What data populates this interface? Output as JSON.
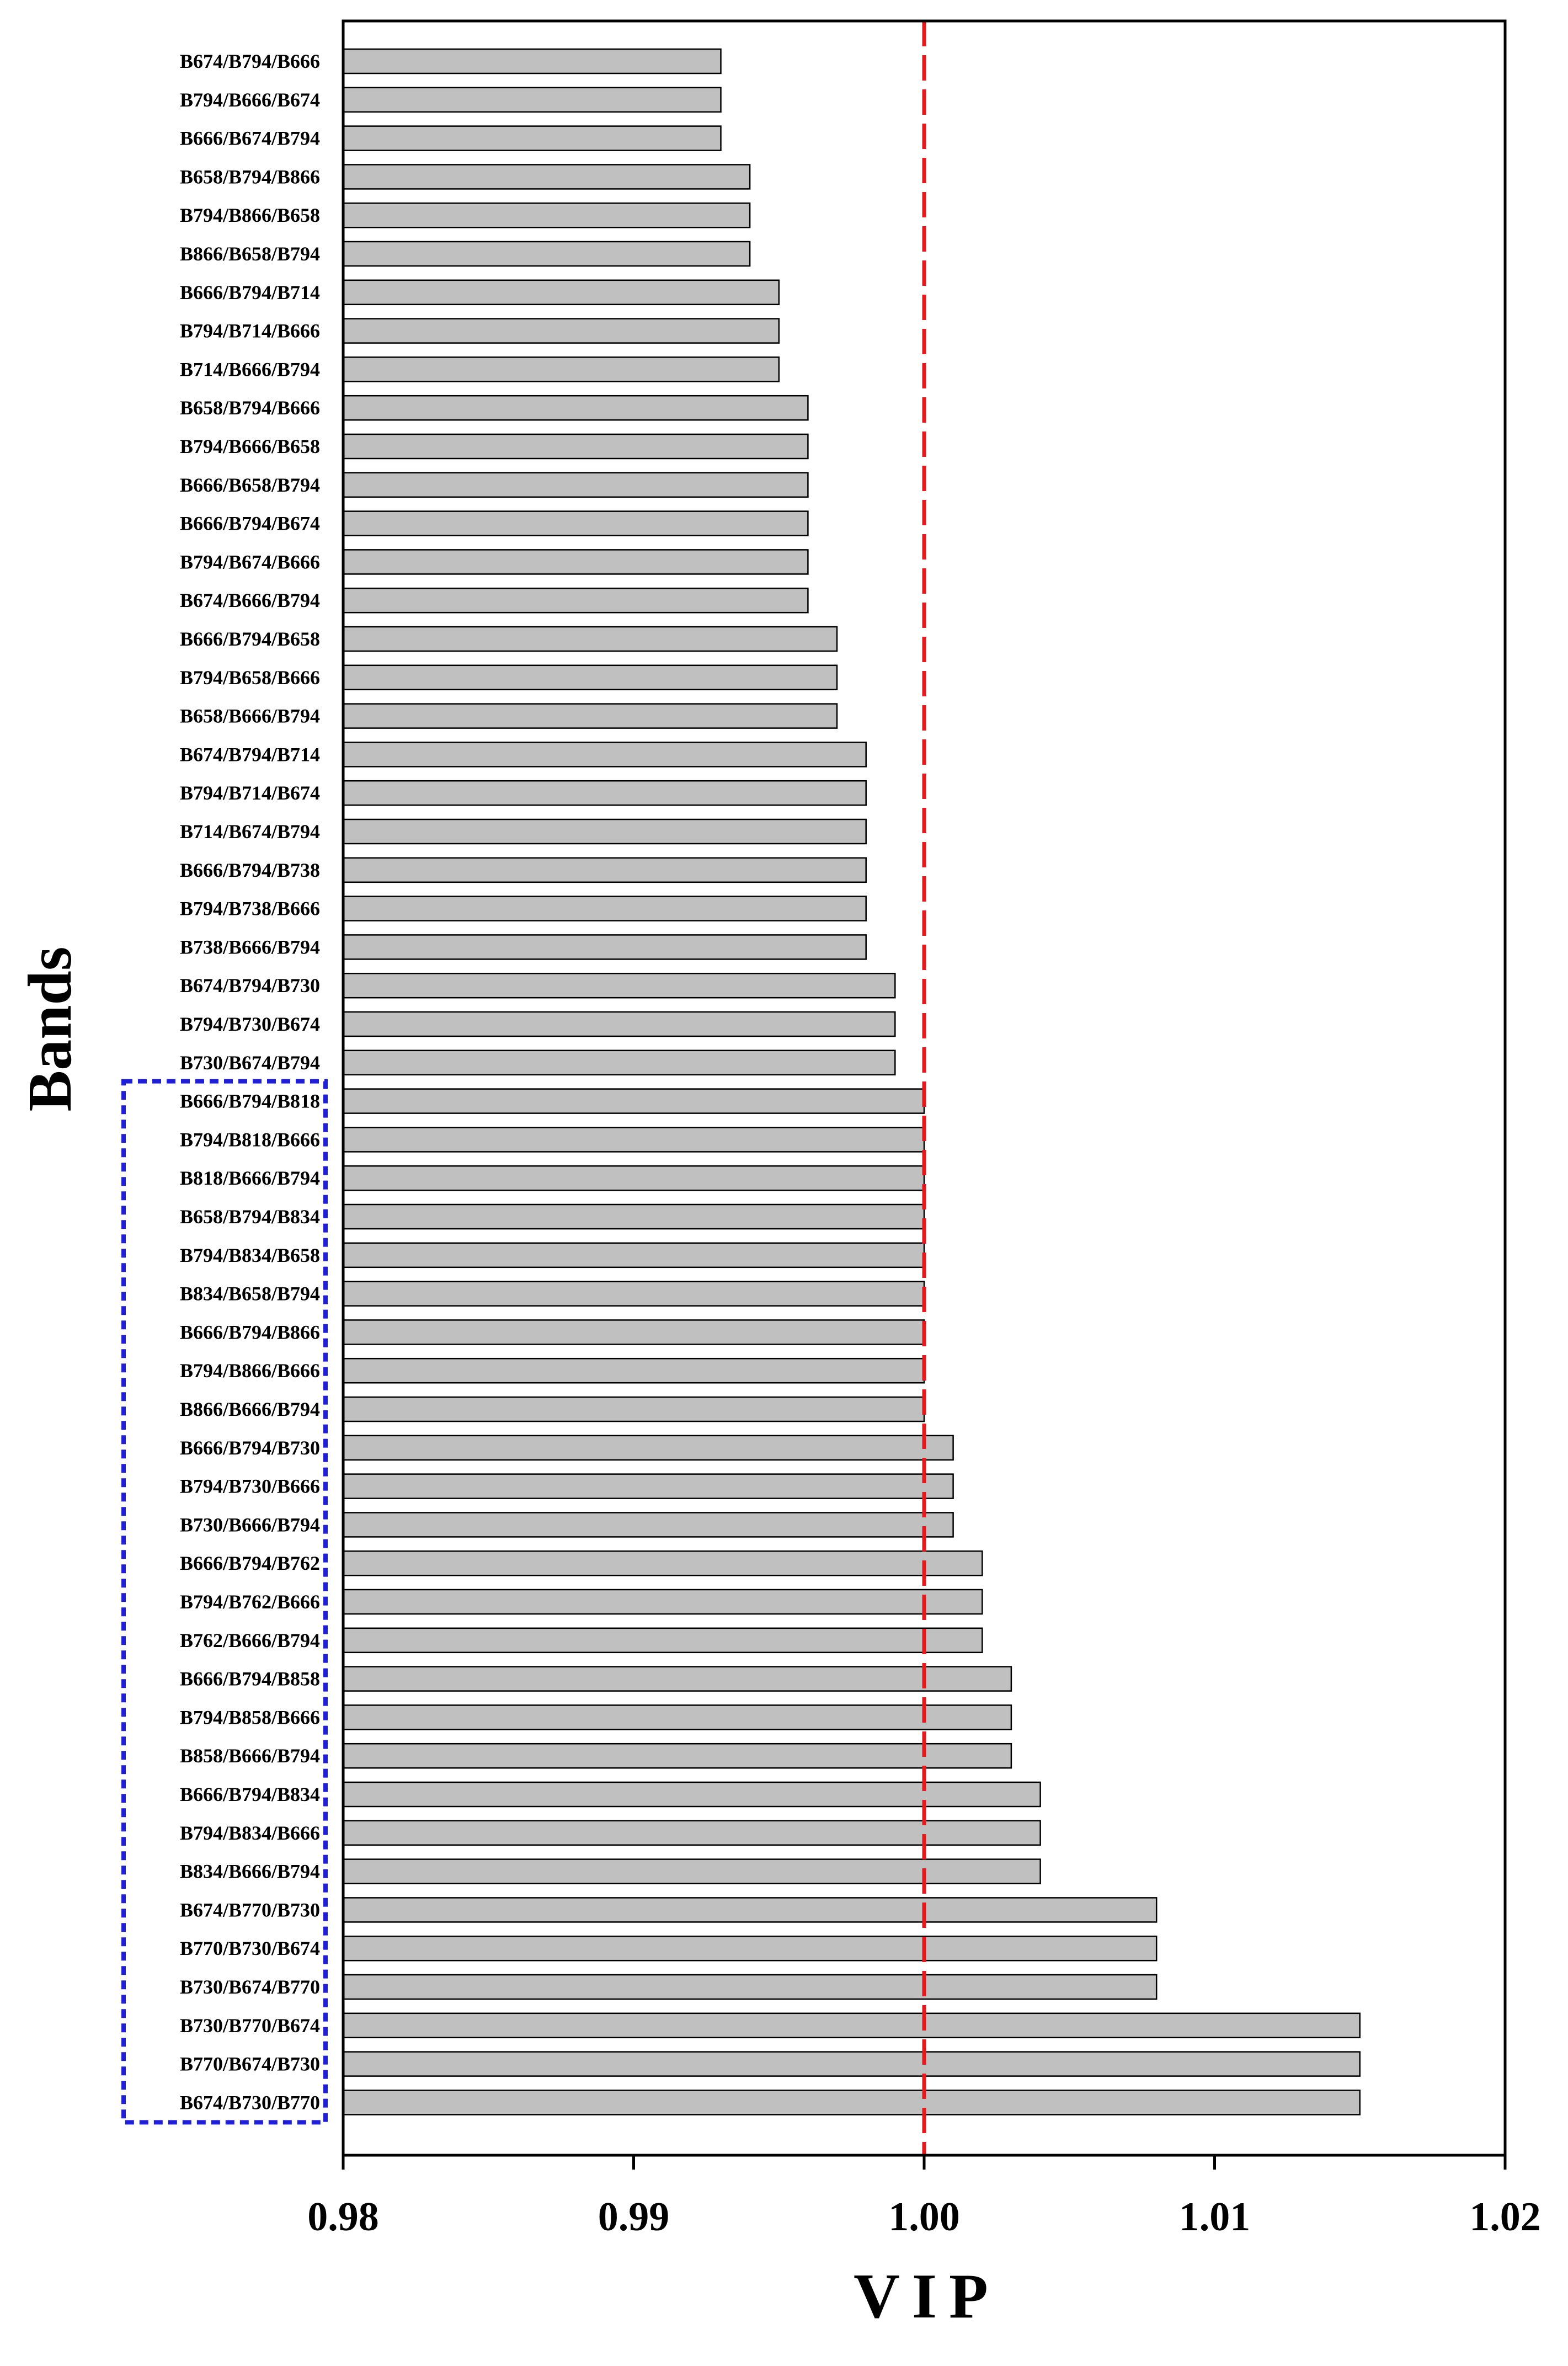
{
  "chart_data": {
    "type": "bar",
    "orientation": "horizontal",
    "title": "",
    "xlabel": "VIP",
    "ylabel": "Bands",
    "xlim": [
      0.98,
      1.02
    ],
    "xticks": [
      "0.98",
      "0.99",
      "1.00",
      "1.01",
      "1.02"
    ],
    "xtick_values": [
      0.98,
      0.99,
      1.0,
      1.01,
      1.02
    ],
    "threshold": 1.0,
    "colors": {
      "bar_fill": "#c0c0c0",
      "bar_stroke": "#000000",
      "threshold_line": "#e41a1c",
      "highlight_box": "#1f1fd6",
      "axis": "#000000"
    },
    "categories": [
      "B674/B794/B666",
      "B794/B666/B674",
      "B666/B674/B794",
      "B658/B794/B866",
      "B794/B866/B658",
      "B866/B658/B794",
      "B666/B794/B714",
      "B794/B714/B666",
      "B714/B666/B794",
      "B658/B794/B666",
      "B794/B666/B658",
      "B666/B658/B794",
      "B666/B794/B674",
      "B794/B674/B666",
      "B674/B666/B794",
      "B666/B794/B658",
      "B794/B658/B666",
      "B658/B666/B794",
      "B674/B794/B714",
      "B794/B714/B674",
      "B714/B674/B794",
      "B666/B794/B738",
      "B794/B738/B666",
      "B738/B666/B794",
      "B674/B794/B730",
      "B794/B730/B674",
      "B730/B674/B794",
      "B666/B794/B818",
      "B794/B818/B666",
      "B818/B666/B794",
      "B658/B794/B834",
      "B794/B834/B658",
      "B834/B658/B794",
      "B666/B794/B866",
      "B794/B866/B666",
      "B866/B666/B794",
      "B666/B794/B730",
      "B794/B730/B666",
      "B730/B666/B794",
      "B666/B794/B762",
      "B794/B762/B666",
      "B762/B666/B794",
      "B666/B794/B858",
      "B794/B858/B666",
      "B858/B666/B794",
      "B666/B794/B834",
      "B794/B834/B666",
      "B834/B666/B794",
      "B674/B770/B730",
      "B770/B730/B674",
      "B730/B674/B770",
      "B730/B770/B674",
      "B770/B674/B730",
      "B674/B730/B770"
    ],
    "values": [
      0.993,
      0.993,
      0.993,
      0.994,
      0.994,
      0.994,
      0.995,
      0.995,
      0.995,
      0.996,
      0.996,
      0.996,
      0.996,
      0.996,
      0.996,
      0.997,
      0.997,
      0.997,
      0.998,
      0.998,
      0.998,
      0.998,
      0.998,
      0.998,
      0.999,
      0.999,
      0.999,
      1.0,
      1.0,
      1.0,
      1.0,
      1.0,
      1.0,
      1.0,
      1.0,
      1.0,
      1.001,
      1.001,
      1.001,
      1.002,
      1.002,
      1.002,
      1.003,
      1.003,
      1.003,
      1.004,
      1.004,
      1.004,
      1.008,
      1.008,
      1.008,
      1.015,
      1.015,
      1.015
    ],
    "highlight_range": [
      27,
      53
    ],
    "grid": false,
    "legend": "none"
  }
}
